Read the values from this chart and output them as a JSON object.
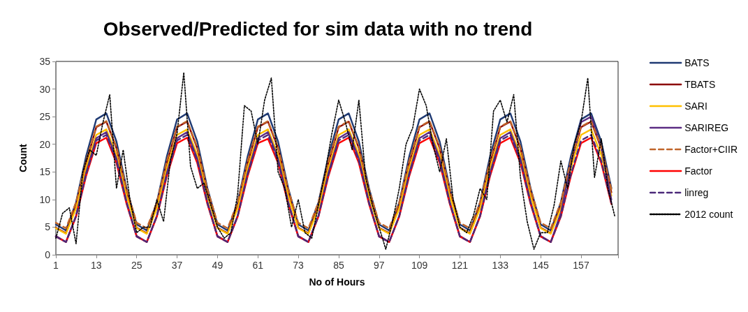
{
  "chart_data": {
    "type": "line",
    "title": "Observed/Predicted for sim data with no trend",
    "xlabel": "No of Hours",
    "ylabel": "Count",
    "xlim": [
      1,
      168
    ],
    "xticks": [
      1,
      13,
      25,
      37,
      49,
      61,
      73,
      85,
      97,
      109,
      121,
      133,
      145,
      157,
      {
        "value": 168,
        "label": null
      }
    ],
    "ylim": [
      0,
      35
    ],
    "yticks": [
      0,
      5,
      10,
      15,
      20,
      25,
      30,
      35
    ],
    "legend": "right",
    "marker": "none",
    "grid": false,
    "x": [
      1,
      4,
      7,
      10,
      13,
      16,
      19,
      22,
      25,
      28,
      31,
      34,
      37,
      40,
      43,
      46,
      49,
      52,
      55,
      58,
      61,
      64,
      67,
      70,
      73,
      76,
      79,
      82,
      85,
      88,
      91,
      94,
      97,
      100,
      103,
      106,
      109,
      112,
      115,
      118,
      121,
      124,
      127,
      130,
      133,
      136,
      139,
      142,
      145,
      148,
      151,
      154,
      157,
      160,
      163,
      166
    ],
    "series": [
      {
        "name": "BATS",
        "color": "#1f3a73",
        "line_style": "solid",
        "values": [
          5.5,
          4.4,
          9.5,
          17.9,
          24.5,
          25.6,
          20.5,
          12.1,
          5.5,
          4.4,
          9.5,
          17.9,
          24.5,
          25.6,
          20.5,
          12.1,
          5.5,
          4.4,
          9.5,
          17.9,
          24.5,
          25.6,
          20.5,
          12.1,
          5.5,
          4.4,
          9.5,
          17.9,
          24.5,
          25.6,
          20.5,
          12.1,
          5.5,
          4.4,
          9.5,
          17.9,
          24.5,
          25.6,
          20.5,
          12.1,
          5.5,
          4.4,
          9.5,
          17.9,
          24.5,
          25.6,
          20.5,
          12.1,
          5.5,
          4.4,
          9.5,
          17.9,
          24.5,
          25.6,
          20.5,
          12.1
        ]
      },
      {
        "name": "TBATS",
        "color": "#8b0000",
        "line_style": "solid",
        "values": [
          4.9,
          3.9,
          8.8,
          16.7,
          23.1,
          24.1,
          19.3,
          11.3,
          4.9,
          3.9,
          8.8,
          16.7,
          23.1,
          24.1,
          19.3,
          11.3,
          4.9,
          3.9,
          8.8,
          16.7,
          23.1,
          24.1,
          19.3,
          11.3,
          4.9,
          3.9,
          8.8,
          16.7,
          23.1,
          24.1,
          19.3,
          11.3,
          4.9,
          3.9,
          8.8,
          16.7,
          23.1,
          24.1,
          19.3,
          11.3,
          4.9,
          3.9,
          8.8,
          16.7,
          23.1,
          24.1,
          19.3,
          11.3,
          4.9,
          3.9,
          8.8,
          16.7,
          23.1,
          24.1,
          19.3,
          11.3
        ]
      },
      {
        "name": "SARI",
        "color": "#ffc000",
        "line_style": "solid",
        "values": [
          4.8,
          3.8,
          8.4,
          15.8,
          21.7,
          22.7,
          18.1,
          10.7,
          4.8,
          3.8,
          8.4,
          15.8,
          21.7,
          22.7,
          18.1,
          10.7,
          4.8,
          3.8,
          8.4,
          15.8,
          21.7,
          22.7,
          18.1,
          10.7,
          4.8,
          3.8,
          8.4,
          15.8,
          21.7,
          22.7,
          18.1,
          10.7,
          4.8,
          3.8,
          8.4,
          15.8,
          21.7,
          22.7,
          18.1,
          10.7,
          4.8,
          3.8,
          8.4,
          15.8,
          21.7,
          22.7,
          18.1,
          10.7,
          4.8,
          3.8,
          8.4,
          15.8,
          21.7,
          22.7,
          18.1,
          10.7
        ]
      },
      {
        "name": "SARIREG",
        "color": "#5b2c83",
        "line_style": "solid",
        "values": [
          3.4,
          2.3,
          7.1,
          14.9,
          21.1,
          22.2,
          17.4,
          9.6,
          3.4,
          2.3,
          7.1,
          14.9,
          21.1,
          22.2,
          17.4,
          9.6,
          3.4,
          2.3,
          7.1,
          14.9,
          21.1,
          22.2,
          17.4,
          9.6,
          3.4,
          2.3,
          7.1,
          14.9,
          21.1,
          22.2,
          17.4,
          9.6,
          3.4,
          2.3,
          7.1,
          14.9,
          21.1,
          22.2,
          17.4,
          9.6,
          3.4,
          2.3,
          7.1,
          14.9,
          21.1,
          22.2,
          17.4,
          9.6,
          3.4,
          2.3,
          7.6,
          16.5,
          24,
          25,
          19.5,
          10
        ]
      },
      {
        "name": "Factor+CIIR",
        "color": "#c0652a",
        "line_style": "dashed",
        "values": [
          5.8,
          4.8,
          9.5,
          17.1,
          23.2,
          24.2,
          19.5,
          11.9,
          5.8,
          4.8,
          9.5,
          17.1,
          23.2,
          24.2,
          19.5,
          11.9,
          5.8,
          4.8,
          9.5,
          17.1,
          23.2,
          24.2,
          19.5,
          11.9,
          5.8,
          4.8,
          9.5,
          17.1,
          23.2,
          24.2,
          19.5,
          11.9,
          5.8,
          4.8,
          9.5,
          17.1,
          23.2,
          24.2,
          19.5,
          11.9,
          5.8,
          4.8,
          9.5,
          17.1,
          23.2,
          24.2,
          19.5,
          11.9,
          5.8,
          4.8,
          9.5,
          17.1,
          23.2,
          24.2,
          19.5,
          11.9
        ]
      },
      {
        "name": "Factor",
        "color": "#ff0000",
        "line_style": "solid",
        "values": [
          3.3,
          2.3,
          6.9,
          14.3,
          20.2,
          21.2,
          16.6,
          9.2,
          3.3,
          2.3,
          6.9,
          14.3,
          20.2,
          21.2,
          16.6,
          9.2,
          3.3,
          2.3,
          6.9,
          14.3,
          20.2,
          21,
          16.6,
          9.2,
          3.3,
          2.3,
          6.9,
          14.3,
          20.2,
          21.2,
          16.6,
          9.2,
          3.3,
          2.3,
          6.9,
          14.3,
          20.2,
          21.2,
          16.6,
          9.2,
          3.3,
          2.3,
          6.9,
          14.3,
          20.2,
          21.2,
          16.6,
          9.2,
          3.3,
          2.3,
          6.9,
          14.3,
          20.2,
          21.2,
          16.6,
          9.2
        ]
      },
      {
        "name": "linreg",
        "color": "#4b2a7a",
        "line_style": "dashed",
        "values": [
          3.3,
          2.3,
          7.0,
          14.6,
          20.7,
          21.7,
          17.0,
          9.4,
          3.3,
          2.3,
          7.0,
          14.6,
          20.7,
          21.7,
          17.0,
          9.4,
          3.3,
          2.3,
          7.0,
          14.6,
          20.7,
          21.7,
          17.0,
          9.4,
          3.3,
          2.3,
          7.0,
          14.6,
          20.7,
          21.7,
          17.0,
          9.4,
          3.3,
          2.3,
          7.0,
          14.6,
          20.7,
          21.7,
          17.0,
          9.4,
          3.3,
          2.3,
          7.0,
          14.6,
          20.7,
          21.7,
          17.0,
          9.4,
          3.3,
          2.3,
          7.0,
          14.6,
          20.7,
          21.7,
          17.0,
          9.4
        ]
      },
      {
        "name": "2012 count",
        "color": "#000000",
        "line_style": "dotted",
        "x": [
          1,
          3,
          5,
          7,
          9,
          11,
          13,
          15,
          17,
          19,
          21,
          23,
          25,
          27,
          29,
          31,
          33,
          35,
          37,
          39,
          41,
          43,
          45,
          47,
          49,
          51,
          53,
          55,
          57,
          59,
          61,
          63,
          65,
          67,
          69,
          71,
          73,
          75,
          77,
          79,
          81,
          83,
          85,
          87,
          89,
          91,
          93,
          95,
          97,
          99,
          101,
          103,
          105,
          107,
          109,
          111,
          113,
          115,
          117,
          119,
          121,
          123,
          125,
          127,
          129,
          131,
          133,
          135,
          137,
          139,
          141,
          143,
          145,
          147,
          149,
          151,
          153,
          155,
          157,
          159,
          161,
          163,
          165,
          167
        ],
        "values": [
          3,
          7.5,
          8.5,
          2,
          15,
          19,
          18,
          24,
          29,
          12,
          19,
          10,
          4,
          5,
          5,
          10,
          6,
          17,
          22,
          33,
          16,
          12,
          13,
          9,
          5,
          3,
          4,
          11,
          27,
          26,
          20,
          28,
          32,
          15,
          12,
          5,
          10,
          4,
          3,
          9,
          15,
          22,
          28,
          24,
          19,
          28,
          14,
          9,
          5,
          1,
          6,
          12,
          20,
          23,
          30,
          27,
          20,
          15,
          21,
          10,
          5,
          4,
          7,
          12,
          10,
          26,
          28,
          24,
          29,
          14,
          6,
          1,
          4,
          4,
          9,
          17,
          12,
          20,
          24,
          32,
          14,
          21,
          12,
          7
        ]
      }
    ]
  }
}
